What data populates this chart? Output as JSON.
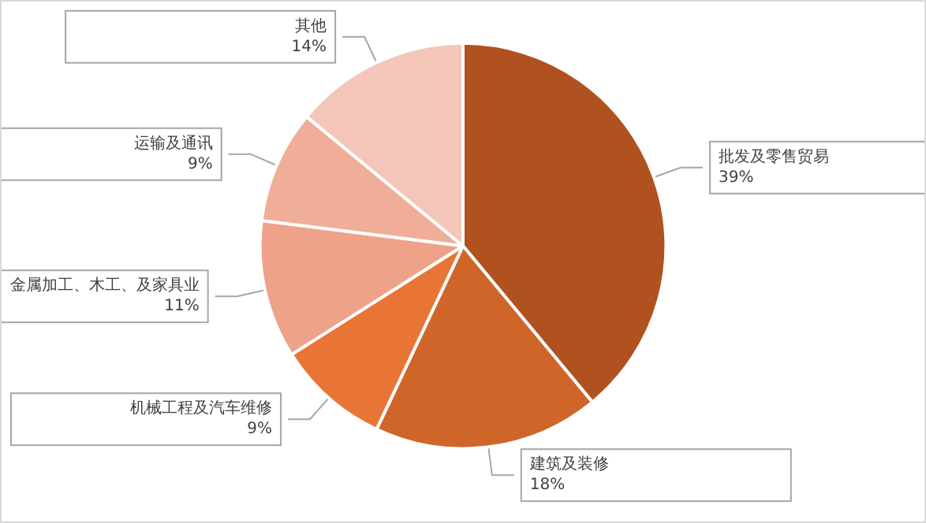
{
  "chart_data": {
    "type": "pie",
    "categories": [
      "批发及零售贸易",
      "建筑及装修",
      "机械工程及汽车维修",
      "金属加工、木工、及家具业",
      "运输及通讯",
      "其他"
    ],
    "values": [
      39,
      18,
      9,
      11,
      9,
      14
    ],
    "value_labels": [
      "39%",
      "18%",
      "9%",
      "11%",
      "9%",
      "14%"
    ],
    "colors": [
      "#b05220",
      "#d0652a",
      "#e87535",
      "#eea28a",
      "#f0ae98",
      "#f4c6b9"
    ],
    "legend": false
  }
}
